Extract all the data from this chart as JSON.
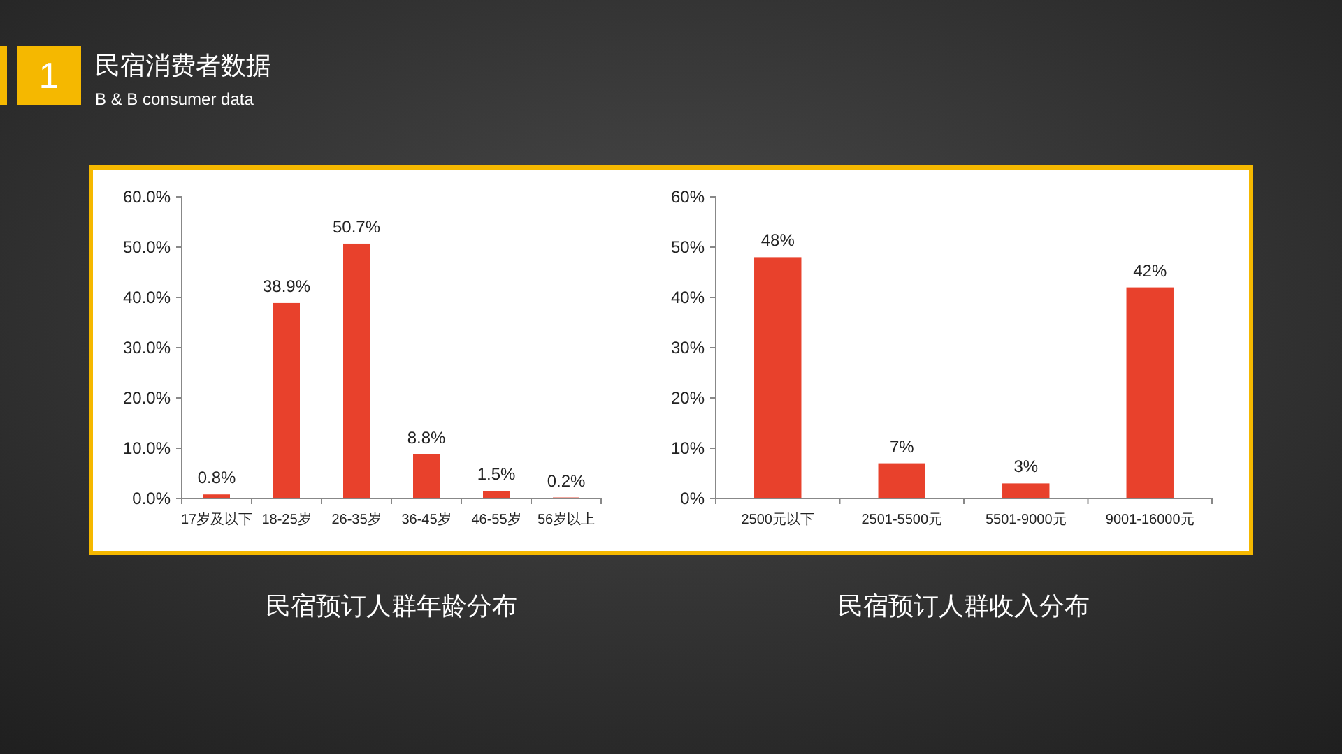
{
  "chart_data": [
    {
      "type": "bar",
      "title": "民宿预订人群年龄分布",
      "annotations": [
        "1",
        "民宿消费者数据",
        "B & B consumer data"
      ],
      "categories": [
        "17岁及以下",
        "18-25岁",
        "26-35岁",
        "36-45岁",
        "46-55岁",
        "56岁以上"
      ],
      "color": "#e8412c",
      "values": [
        0.8,
        38.9,
        50.7,
        8.8,
        1.5,
        0.2
      ],
      "value_labels": [
        "0.8%",
        "38.9%",
        "50.7%",
        "8.8%",
        "1.5%",
        "0.2%"
      ],
      "ylim": [
        0,
        60
      ],
      "yticks": [
        {
          "value": 0,
          "label": "0.0%"
        },
        {
          "value": 10,
          "label": "10.0%"
        },
        {
          "value": 20,
          "label": "20.0%"
        },
        {
          "value": 30,
          "label": "30.0%"
        },
        {
          "value": 40,
          "label": "40.0%"
        },
        {
          "value": 50,
          "label": "50.0%"
        },
        {
          "value": 60,
          "label": "60.0%"
        }
      ],
      "grid": false
    },
    {
      "type": "bar",
      "title": "民宿预订人群收入分布",
      "categories": [
        "2500元以下",
        "2501-5500元",
        "5501-9000元",
        "9001-16000元"
      ],
      "color": "#e8412c",
      "values": [
        48,
        7,
        3,
        42
      ],
      "value_labels": [
        "48%",
        "7%",
        "3%",
        "42%"
      ],
      "ylim": [
        0,
        60
      ],
      "yticks": [
        {
          "value": 0,
          "label": "0%"
        },
        {
          "value": 10,
          "label": "10%"
        },
        {
          "value": 20,
          "label": "20%"
        },
        {
          "value": 30,
          "label": "30%"
        },
        {
          "value": 40,
          "label": "40%"
        },
        {
          "value": 50,
          "label": "50%"
        },
        {
          "value": 60,
          "label": "60%"
        }
      ],
      "grid": false
    }
  ]
}
